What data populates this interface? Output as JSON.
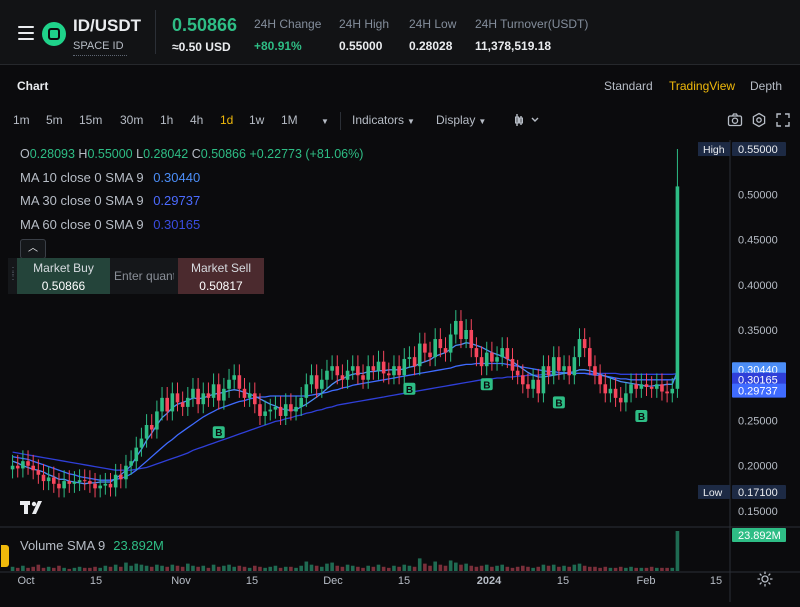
{
  "header": {
    "pair": "ID/USDT",
    "subtitle": "SPACE ID",
    "price": "0.50866",
    "price_usd": "≈0.50 USD",
    "stats": [
      {
        "label": "24H Change",
        "value": "+80.91%"
      },
      {
        "label": "24H High",
        "value": "0.55000"
      },
      {
        "label": "24H Low",
        "value": "0.28028"
      },
      {
        "label": "24H Turnover(USDT)",
        "value": "11,378,519.18"
      }
    ]
  },
  "chart_header": {
    "title": "Chart",
    "views": [
      "Standard",
      "TradingView",
      "Depth"
    ],
    "active_view": "TradingView"
  },
  "toolbar": {
    "intervals": [
      "1m",
      "5m",
      "15m",
      "30m",
      "1h",
      "4h",
      "1d",
      "1w",
      "1M"
    ],
    "active_interval": "1d",
    "indicators_label": "Indicators",
    "display_label": "Display"
  },
  "legend": {
    "ohlc": {
      "o_label": "O",
      "o": "0.28093",
      "h_label": "H",
      "h": "0.55000",
      "l_label": "L",
      "l": "0.28042",
      "c_label": "C",
      "c": "0.50866",
      "change": "+0.22773 (+81.06%)"
    },
    "ma": [
      {
        "label": "MA 10 close 0 SMA 9",
        "value": "0.30440",
        "color": "#4c8ef7"
      },
      {
        "label": "MA 30 close 0 SMA 9",
        "value": "0.29737",
        "color": "#3f6bff"
      },
      {
        "label": "MA 60 close 0 SMA 9",
        "value": "0.30165",
        "color": "#2f3fd8"
      }
    ],
    "volume": {
      "label": "Volume SMA 9",
      "value": "23.892M"
    }
  },
  "trade_panel": {
    "buy_label": "Market Buy",
    "buy_price": "0.50866",
    "sell_label": "Market Sell",
    "sell_price": "0.50817",
    "qty_placeholder": "Enter quantity"
  },
  "price_axis": {
    "ticks": [
      "0.50000",
      "0.45000",
      "0.40000",
      "0.35000",
      "0.30000",
      "0.25000",
      "0.20000",
      "0.15000"
    ],
    "high_tag": {
      "label": "High",
      "value": "0.55000"
    },
    "low_tag": {
      "label": "Low",
      "value": "0.17100"
    },
    "ma_tags": [
      "0.30440",
      "0.30165",
      "0.29737"
    ],
    "volume_tag": "23.892M"
  },
  "time_axis": {
    "ticks": [
      "Oct",
      "15",
      "Nov",
      "15",
      "Dec",
      "15",
      "2024",
      "15",
      "Feb",
      "15"
    ]
  },
  "colors": {
    "up": "#2ebd85",
    "down": "#f6465d",
    "accent": "#f0b90b",
    "ma10": "#4c8ef7",
    "ma30": "#3f6bff",
    "ma60": "#2f3fd8"
  },
  "chart_data": {
    "type": "candlestick",
    "interval": "1d",
    "ylim": [
      0.14,
      0.56
    ],
    "y_ticks": [
      0.15,
      0.2,
      0.25,
      0.3,
      0.35,
      0.4,
      0.45,
      0.5
    ],
    "closes": [
      0.2,
      0.197,
      0.205,
      0.2,
      0.195,
      0.19,
      0.183,
      0.187,
      0.18,
      0.175,
      0.183,
      0.18,
      0.182,
      0.184,
      0.183,
      0.18,
      0.175,
      0.178,
      0.18,
      0.176,
      0.19,
      0.185,
      0.2,
      0.205,
      0.22,
      0.23,
      0.245,
      0.24,
      0.26,
      0.275,
      0.26,
      0.28,
      0.27,
      0.265,
      0.275,
      0.285,
      0.268,
      0.28,
      0.275,
      0.29,
      0.272,
      0.285,
      0.295,
      0.3,
      0.285,
      0.275,
      0.28,
      0.268,
      0.255,
      0.26,
      0.262,
      0.265,
      0.255,
      0.268,
      0.26,
      0.265,
      0.275,
      0.29,
      0.3,
      0.285,
      0.295,
      0.305,
      0.31,
      0.3,
      0.295,
      0.305,
      0.31,
      0.3,
      0.295,
      0.31,
      0.305,
      0.315,
      0.302,
      0.3,
      0.31,
      0.3,
      0.318,
      0.32,
      0.31,
      0.335,
      0.325,
      0.32,
      0.34,
      0.33,
      0.325,
      0.345,
      0.36,
      0.34,
      0.35,
      0.33,
      0.32,
      0.31,
      0.325,
      0.315,
      0.32,
      0.33,
      0.318,
      0.305,
      0.3,
      0.29,
      0.285,
      0.295,
      0.28,
      0.31,
      0.3,
      0.32,
      0.305,
      0.31,
      0.3,
      0.32,
      0.34,
      0.33,
      0.31,
      0.3,
      0.29,
      0.28,
      0.285,
      0.275,
      0.27,
      0.28,
      0.29,
      0.285,
      0.29,
      0.287,
      0.285,
      0.29,
      0.282,
      0.28,
      0.285,
      0.5087
    ],
    "ma10": [
      0.205,
      0.203,
      0.2,
      0.198,
      0.196,
      0.195,
      0.193,
      0.19,
      0.188,
      0.185,
      0.185,
      0.183,
      0.182,
      0.181,
      0.18,
      0.181,
      0.181,
      0.182,
      0.182,
      0.182,
      0.186,
      0.19,
      0.195,
      0.2,
      0.21,
      0.218,
      0.228,
      0.236,
      0.245,
      0.253,
      0.258,
      0.264,
      0.268,
      0.27,
      0.272,
      0.275,
      0.274,
      0.275,
      0.277,
      0.279,
      0.28,
      0.281,
      0.283,
      0.284,
      0.283,
      0.281,
      0.279,
      0.277,
      0.274,
      0.271,
      0.268,
      0.266,
      0.263,
      0.262,
      0.261,
      0.262,
      0.265,
      0.268,
      0.272,
      0.276,
      0.28,
      0.285,
      0.29,
      0.294,
      0.296,
      0.299,
      0.301,
      0.302,
      0.302,
      0.304,
      0.304,
      0.305,
      0.305,
      0.306,
      0.306,
      0.306,
      0.307,
      0.309,
      0.31,
      0.313,
      0.315,
      0.317,
      0.321,
      0.323,
      0.325,
      0.329,
      0.333,
      0.334,
      0.336,
      0.335,
      0.333,
      0.331,
      0.328,
      0.325,
      0.323,
      0.321,
      0.318,
      0.315,
      0.311,
      0.307,
      0.303,
      0.3,
      0.298,
      0.298,
      0.299,
      0.3,
      0.301,
      0.302,
      0.303,
      0.304,
      0.306,
      0.306,
      0.305,
      0.303,
      0.301,
      0.299,
      0.297,
      0.295,
      0.293,
      0.292,
      0.291,
      0.29,
      0.289,
      0.288,
      0.288,
      0.289,
      0.289,
      0.29,
      0.29,
      0.3044
    ],
    "ma30": [
      0.21,
      0.209,
      0.208,
      0.207,
      0.205,
      0.203,
      0.201,
      0.199,
      0.197,
      0.195,
      0.193,
      0.191,
      0.19,
      0.188,
      0.187,
      0.186,
      0.185,
      0.184,
      0.184,
      0.184,
      0.185,
      0.186,
      0.188,
      0.191,
      0.195,
      0.2,
      0.205,
      0.21,
      0.215,
      0.22,
      0.225,
      0.229,
      0.234,
      0.238,
      0.242,
      0.246,
      0.25,
      0.254,
      0.257,
      0.26,
      0.263,
      0.265,
      0.267,
      0.269,
      0.271,
      0.272,
      0.274,
      0.275,
      0.276,
      0.276,
      0.277,
      0.277,
      0.277,
      0.277,
      0.277,
      0.277,
      0.277,
      0.277,
      0.278,
      0.279,
      0.28,
      0.281,
      0.283,
      0.284,
      0.286,
      0.287,
      0.289,
      0.29,
      0.291,
      0.292,
      0.293,
      0.294,
      0.295,
      0.296,
      0.297,
      0.298,
      0.299,
      0.3,
      0.301,
      0.302,
      0.303,
      0.304,
      0.305,
      0.306,
      0.307,
      0.308,
      0.31,
      0.311,
      0.312,
      0.312,
      0.313,
      0.313,
      0.313,
      0.313,
      0.313,
      0.313,
      0.312,
      0.311,
      0.31,
      0.309,
      0.308,
      0.307,
      0.306,
      0.305,
      0.304,
      0.304,
      0.303,
      0.303,
      0.302,
      0.302,
      0.302,
      0.302,
      0.301,
      0.3,
      0.3,
      0.299,
      0.298,
      0.297,
      0.296,
      0.296,
      0.295,
      0.295,
      0.295,
      0.295,
      0.295,
      0.295,
      0.295,
      0.295,
      0.295,
      0.2974
    ],
    "ma60": [
      0.215,
      0.214,
      0.213,
      0.212,
      0.211,
      0.21,
      0.209,
      0.208,
      0.207,
      0.206,
      0.205,
      0.204,
      0.203,
      0.202,
      0.201,
      0.2,
      0.199,
      0.198,
      0.197,
      0.196,
      0.195,
      0.195,
      0.195,
      0.195,
      0.196,
      0.197,
      0.198,
      0.2,
      0.202,
      0.204,
      0.206,
      0.208,
      0.21,
      0.212,
      0.214,
      0.217,
      0.219,
      0.221,
      0.223,
      0.225,
      0.227,
      0.229,
      0.231,
      0.233,
      0.235,
      0.237,
      0.239,
      0.241,
      0.243,
      0.245,
      0.247,
      0.249,
      0.25,
      0.252,
      0.253,
      0.255,
      0.256,
      0.258,
      0.259,
      0.261,
      0.262,
      0.264,
      0.265,
      0.267,
      0.268,
      0.269,
      0.27,
      0.271,
      0.272,
      0.273,
      0.274,
      0.275,
      0.276,
      0.277,
      0.278,
      0.279,
      0.28,
      0.281,
      0.282,
      0.283,
      0.284,
      0.285,
      0.286,
      0.287,
      0.288,
      0.289,
      0.29,
      0.291,
      0.292,
      0.293,
      0.294,
      0.295,
      0.296,
      0.296,
      0.297,
      0.297,
      0.298,
      0.298,
      0.299,
      0.299,
      0.3,
      0.3,
      0.3,
      0.301,
      0.301,
      0.301,
      0.301,
      0.302,
      0.302,
      0.302,
      0.302,
      0.302,
      0.302,
      0.302,
      0.302,
      0.302,
      0.302,
      0.302,
      0.301,
      0.301,
      0.301,
      0.301,
      0.301,
      0.301,
      0.301,
      0.301,
      0.301,
      0.301,
      0.301,
      0.3017
    ],
    "volume": [
      4,
      3,
      5,
      3,
      4,
      6,
      3,
      4,
      3,
      5,
      3,
      2,
      3,
      4,
      3,
      3,
      4,
      3,
      5,
      4,
      6,
      4,
      8,
      5,
      7,
      6,
      5,
      4,
      6,
      5,
      4,
      6,
      5,
      4,
      7,
      5,
      4,
      5,
      3,
      6,
      4,
      5,
      6,
      4,
      5,
      4,
      3,
      5,
      4,
      3,
      4,
      5,
      3,
      4,
      4,
      3,
      5,
      9,
      6,
      5,
      4,
      7,
      8,
      5,
      4,
      6,
      5,
      4,
      3,
      5,
      4,
      6,
      4,
      3,
      5,
      4,
      6,
      5,
      4,
      12,
      7,
      5,
      9,
      6,
      5,
      10,
      8,
      6,
      7,
      5,
      4,
      5,
      6,
      4,
      5,
      6,
      4,
      3,
      4,
      5,
      4,
      3,
      4,
      6,
      5,
      6,
      4,
      5,
      4,
      6,
      7,
      5,
      4,
      4,
      3,
      4,
      3,
      3,
      4,
      3,
      4,
      3,
      3,
      3,
      4,
      3,
      3,
      3,
      3,
      38
    ],
    "buy_markers": [
      40,
      77,
      92,
      106,
      122
    ]
  }
}
